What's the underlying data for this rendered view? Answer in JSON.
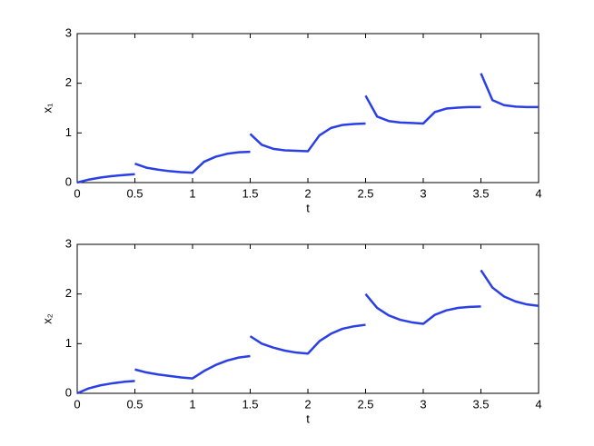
{
  "chart_data": [
    {
      "type": "line",
      "xlabel": "t",
      "ylabel": "x₁",
      "x": [
        0,
        0.1,
        0.2,
        0.3,
        0.4,
        0.5,
        0.5,
        0.5,
        0.6,
        0.7,
        0.8,
        0.9,
        1.0,
        1.1,
        1.2,
        1.3,
        1.4,
        1.5,
        1.5,
        1.5,
        1.6,
        1.7,
        1.8,
        1.9,
        2.0,
        2.1,
        2.2,
        2.3,
        2.4,
        2.5,
        2.5,
        2.5,
        2.6,
        2.7,
        2.8,
        2.9,
        3.0,
        3.1,
        3.2,
        3.3,
        3.4,
        3.5,
        3.5,
        3.5,
        3.6,
        3.7,
        3.8,
        3.9,
        4.0
      ],
      "series": [
        {
          "color": "#2a3fe6",
          "values": [
            0,
            0.06,
            0.1,
            0.13,
            0.15,
            0.17,
            null,
            0.38,
            0.3,
            0.26,
            0.23,
            0.21,
            0.2,
            0.42,
            0.52,
            0.58,
            0.61,
            0.62,
            null,
            0.98,
            0.76,
            0.68,
            0.65,
            0.64,
            0.63,
            0.95,
            1.1,
            1.16,
            1.18,
            1.19,
            null,
            1.75,
            1.33,
            1.24,
            1.21,
            1.2,
            1.19,
            1.42,
            1.49,
            1.51,
            1.52,
            1.52,
            null,
            2.2,
            1.66,
            1.56,
            1.53,
            1.52,
            1.52
          ]
        }
      ],
      "xlim": [
        0,
        4
      ],
      "xticks": [
        0,
        0.5,
        1,
        1.5,
        2,
        2.5,
        3,
        3.5,
        4
      ],
      "ylim": [
        0,
        3
      ],
      "yticks": [
        0,
        1,
        2,
        3
      ]
    },
    {
      "type": "line",
      "xlabel": "t",
      "ylabel": "x₂",
      "x": [
        0,
        0.1,
        0.2,
        0.3,
        0.4,
        0.5,
        0.5,
        0.5,
        0.6,
        0.7,
        0.8,
        0.9,
        1.0,
        1.1,
        1.2,
        1.3,
        1.4,
        1.5,
        1.5,
        1.5,
        1.6,
        1.7,
        1.8,
        1.9,
        2.0,
        2.1,
        2.2,
        2.3,
        2.4,
        2.5,
        2.5,
        2.5,
        2.6,
        2.7,
        2.8,
        2.9,
        3.0,
        3.1,
        3.2,
        3.3,
        3.4,
        3.5,
        3.5,
        3.5,
        3.6,
        3.7,
        3.8,
        3.9,
        4.0
      ],
      "series": [
        {
          "color": "#2a3fe6",
          "values": [
            0,
            0.1,
            0.16,
            0.2,
            0.23,
            0.25,
            null,
            0.48,
            0.42,
            0.38,
            0.35,
            0.32,
            0.3,
            0.45,
            0.57,
            0.66,
            0.72,
            0.75,
            null,
            1.15,
            1.0,
            0.92,
            0.86,
            0.82,
            0.8,
            1.05,
            1.2,
            1.3,
            1.35,
            1.38,
            null,
            2.0,
            1.72,
            1.57,
            1.48,
            1.43,
            1.4,
            1.58,
            1.67,
            1.72,
            1.74,
            1.75,
            null,
            2.48,
            2.13,
            1.95,
            1.85,
            1.79,
            1.76
          ]
        }
      ],
      "xlim": [
        0,
        4
      ],
      "xticks": [
        0,
        0.5,
        1,
        1.5,
        2,
        2.5,
        3,
        3.5,
        4
      ],
      "ylim": [
        0,
        3
      ],
      "yticks": [
        0,
        1,
        2,
        3
      ]
    }
  ]
}
